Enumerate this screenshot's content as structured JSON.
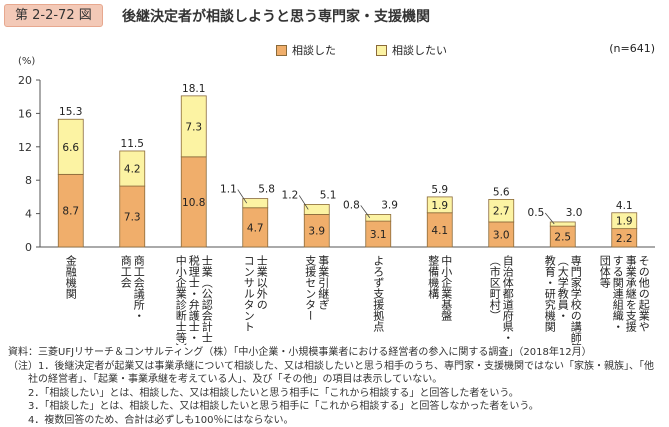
{
  "header": {
    "figure_number": "第 2-2-72 図",
    "title": "後継決定者が相談しようと思う専門家・支援機関"
  },
  "chart_data": {
    "type": "bar",
    "stacked": true,
    "y_unit_label": "(%)",
    "n_label": "(n=641)",
    "ylim": [
      0,
      20
    ],
    "yticks": [
      0,
      4,
      8,
      12,
      16,
      20
    ],
    "legend_position": "top-center",
    "grid": false,
    "categories": [
      [
        "金融機関"
      ],
      [
        "商工会議所・",
        "商工会"
      ],
      [
        "士業（公認会計士・",
        "税理士・弁護士・",
        "中小企業診断士等）"
      ],
      [
        "士業以外の",
        "コンサルタント"
      ],
      [
        "事業引継ぎ",
        "支援センター"
      ],
      [
        "よろず支援拠点"
      ],
      [
        "中小企業基盤",
        "整備機構"
      ],
      [
        "自治体都道府県・",
        "（市区町村）"
      ],
      [
        "専門家学校の講師等）",
        "（大学教員・",
        "教育・研究機関"
      ],
      [
        "その他の起業や",
        "事業承継を支援",
        "する関連組織・",
        "団体等"
      ]
    ],
    "series": [
      {
        "name": "相談した",
        "color": "#f0ae6b",
        "values": [
          8.7,
          7.3,
          10.8,
          4.7,
          3.9,
          3.1,
          4.1,
          3.0,
          2.5,
          2.2
        ]
      },
      {
        "name": "相談したい",
        "color": "#fcf3a3",
        "values": [
          6.6,
          4.2,
          7.3,
          1.1,
          1.2,
          0.8,
          1.9,
          2.7,
          0.5,
          1.9
        ]
      }
    ],
    "totals": [
      15.3,
      11.5,
      18.1,
      5.8,
      5.1,
      3.9,
      5.9,
      5.6,
      3.0,
      4.1
    ]
  },
  "notes": [
    "資料：三菱UFJリサーチ＆コンサルティング（株）「中小企業・小規模事業者における経営者の参入に関する調査」（2018年12月）",
    "（注）1．後継決定者が起業又は事業承継について相談した、又は相談したいと思う相手のうち、専門家・支援機関ではない「家族・親族」、「他",
    "社の経営者」、「起業・事業承継を考えている人」、及び「その他」の項目は表示していない。",
    "2．「相談したい」とは、相談した、又は相談したいと思う相手に「これから相談する」と回答した者をいう。",
    "3．「相談した」とは、相談した、又は相談したいと思う相手に「これから相談する」と回答しなかった者をいう。",
    "4．複数回答のため、合計は必ずしも100％にはならない。"
  ]
}
